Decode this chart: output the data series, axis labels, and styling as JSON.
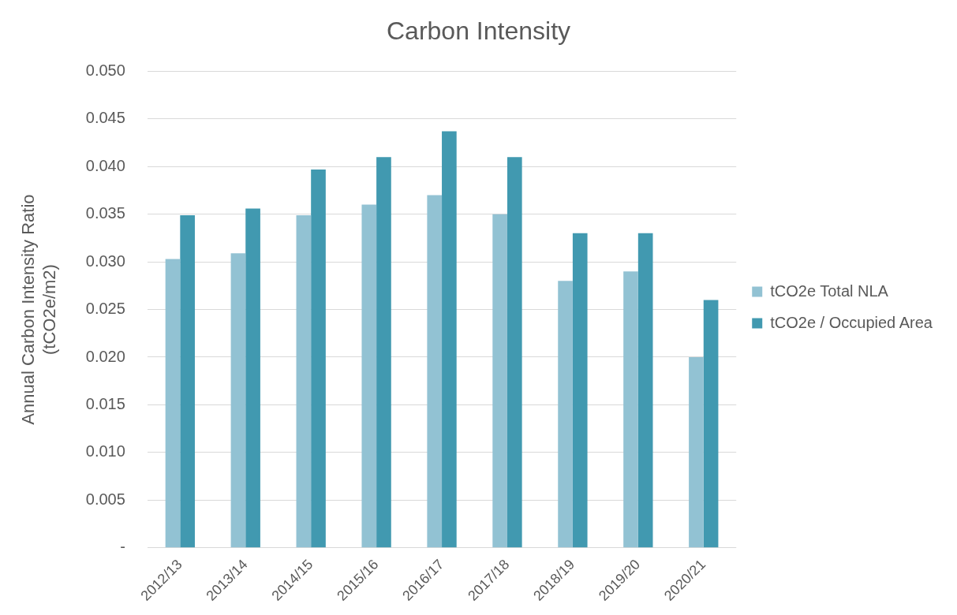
{
  "chart_data": {
    "type": "bar",
    "title": "Carbon Intensity",
    "ylabel": "Annual Carbon Intensity Ratio\n(tCO2e/m2)",
    "categories": [
      "2012/13",
      "2013/14",
      "2014/15",
      "2015/16",
      "2016/17",
      "2017/18",
      "2018/19",
      "2019/20",
      "2020/21"
    ],
    "series": [
      {
        "name": "tCO2e Total NLA",
        "color": "#92c2d3",
        "values": [
          0.0303,
          0.0309,
          0.0349,
          0.036,
          0.037,
          0.035,
          0.028,
          0.029,
          0.02
        ]
      },
      {
        "name": "tCO2e / Occupied Area",
        "color": "#4199b0",
        "values": [
          0.0349,
          0.0356,
          0.0397,
          0.041,
          0.0437,
          0.041,
          0.033,
          0.033,
          0.026
        ]
      }
    ],
    "ylim": [
      0,
      0.05
    ],
    "yticks": [
      {
        "value": 0,
        "label": "-"
      },
      {
        "value": 0.005,
        "label": "0.005"
      },
      {
        "value": 0.01,
        "label": "0.010"
      },
      {
        "value": 0.015,
        "label": "0.015"
      },
      {
        "value": 0.02,
        "label": "0.020"
      },
      {
        "value": 0.025,
        "label": "0.025"
      },
      {
        "value": 0.03,
        "label": "0.030"
      },
      {
        "value": 0.035,
        "label": "0.035"
      },
      {
        "value": 0.04,
        "label": "0.040"
      },
      {
        "value": 0.045,
        "label": "0.045"
      },
      {
        "value": 0.05,
        "label": "0.050"
      }
    ],
    "grid": "y",
    "legend": "right"
  }
}
